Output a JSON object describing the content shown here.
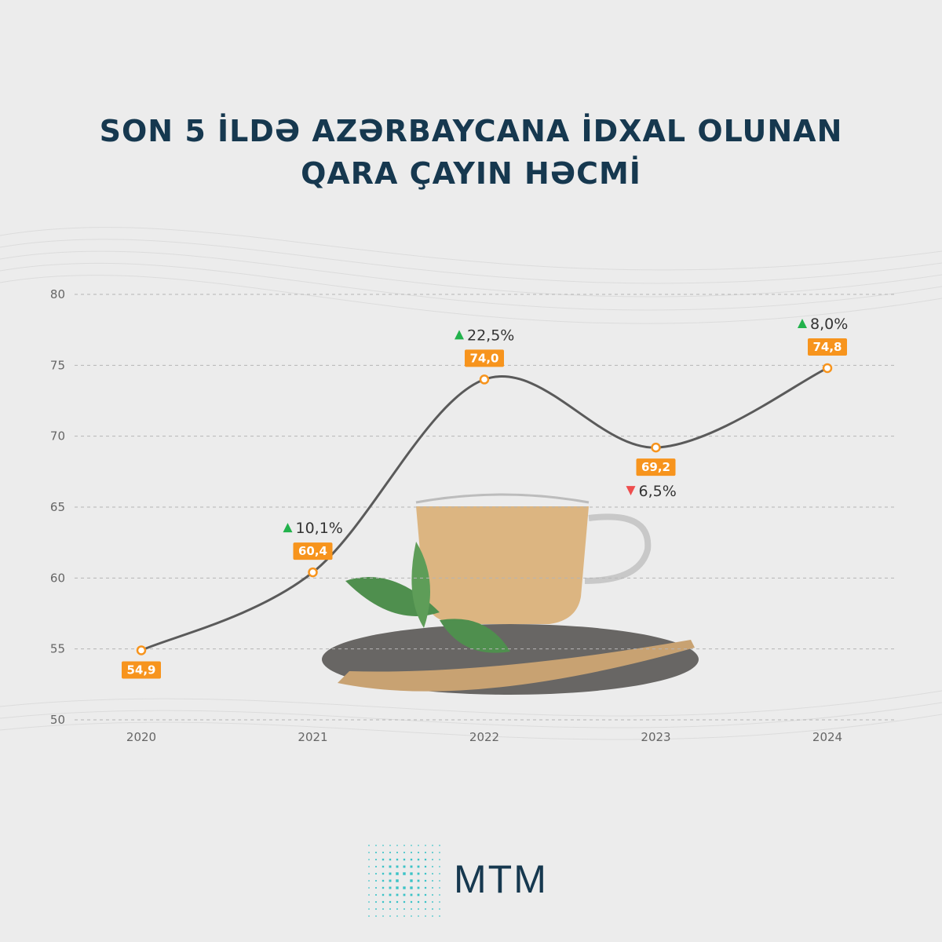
{
  "title": {
    "line1": "SON 5 İLDƏ AZƏRBAYCANA İDXAL OLUNAN",
    "line2": "QARA ÇAYIN HƏCMİ"
  },
  "chart_data": {
    "type": "line",
    "categories": [
      "2020",
      "2021",
      "2022",
      "2023",
      "2024"
    ],
    "series": [
      {
        "values": [
          54.9,
          60.4,
          74.0,
          69.2,
          74.8
        ],
        "value_labels": [
          "54,9",
          "60,4",
          "74,0",
          "69,2",
          "74,8"
        ],
        "changes": [
          "",
          "10,1%",
          "22,5%",
          "6,5%",
          "8,0%"
        ],
        "change_direction": [
          "",
          "up",
          "up",
          "down",
          "up"
        ]
      }
    ],
    "ylim": [
      50,
      80
    ],
    "yticks": [
      "50",
      "55",
      "60",
      "65",
      "70",
      "75",
      "80"
    ],
    "grid": true,
    "colors": {
      "line": "#5a5a5a",
      "label_bg": "#f7941d",
      "up": "#22b24c",
      "down": "#ee4d4d"
    }
  },
  "logo": {
    "text": "MTM",
    "icon": "mtm-logo-icon",
    "colors": [
      "#3cc3c7",
      "#16384f"
    ]
  }
}
